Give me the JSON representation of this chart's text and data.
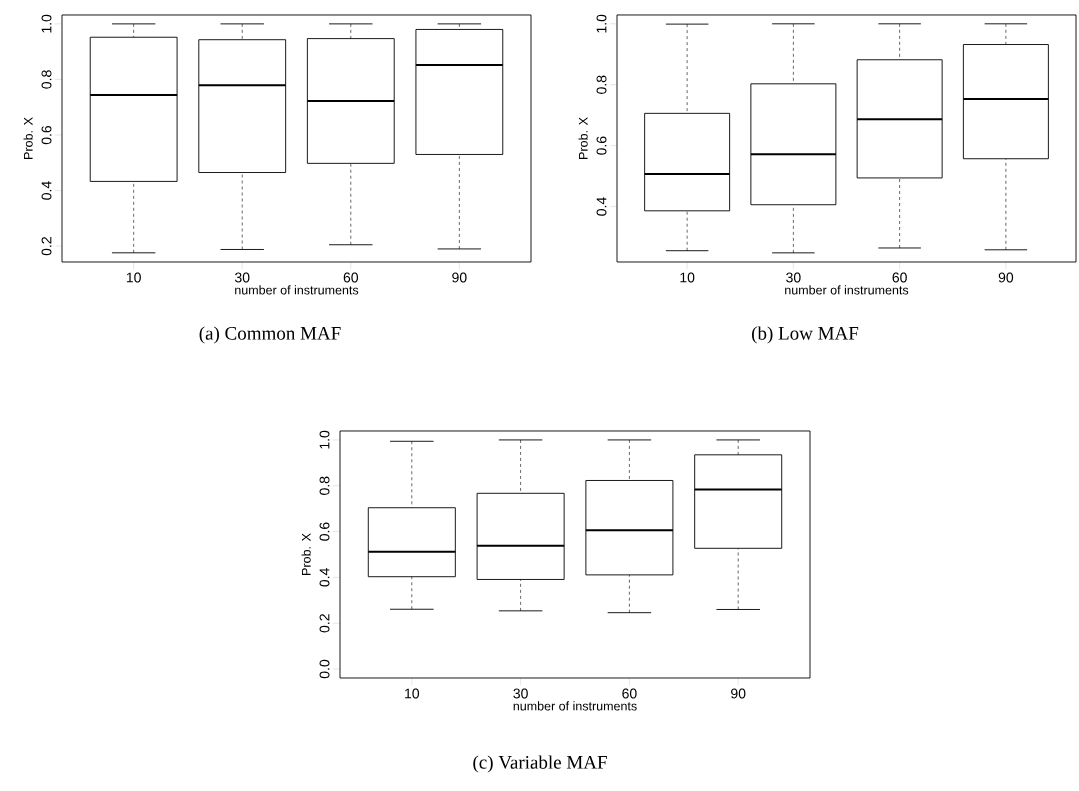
{
  "chart_data": [
    {
      "type": "box",
      "categories": [
        "10",
        "30",
        "60",
        "90"
      ],
      "xlabel": "number of instruments",
      "ylabel": "Prob. X",
      "ylim": [
        0.143,
        1.032
      ],
      "yticks": [
        {
          "value": 0.2,
          "label": "0.2"
        },
        {
          "value": 0.4,
          "label": "0.4"
        },
        {
          "value": 0.6,
          "label": "0.6"
        },
        {
          "value": 0.8,
          "label": "0.8"
        },
        {
          "value": 1,
          "label": "1.0"
        }
      ],
      "boxes": [
        {
          "low": 0.176,
          "q1": 0.433,
          "median": 0.744,
          "q3": 0.952,
          "high": 1.0
        },
        {
          "low": 0.188,
          "q1": 0.465,
          "median": 0.779,
          "q3": 0.943,
          "high": 1.0
        },
        {
          "low": 0.205,
          "q1": 0.498,
          "median": 0.722,
          "q3": 0.947,
          "high": 1.0
        },
        {
          "low": 0.19,
          "q1": 0.53,
          "median": 0.852,
          "q3": 0.98,
          "high": 1.0
        }
      ],
      "annotations": [
        "(a) Common MAF"
      ]
    },
    {
      "type": "box",
      "categories": [
        "10",
        "30",
        "60",
        "90"
      ],
      "xlabel": "number of instruments",
      "ylabel": "Prob. X",
      "ylim": [
        0.218,
        1.029
      ],
      "yticks": [
        {
          "value": 0.4,
          "label": "0.4"
        },
        {
          "value": 0.6,
          "label": "0.6"
        },
        {
          "value": 0.8,
          "label": "0.8"
        },
        {
          "value": 1,
          "label": "1.0"
        }
      ],
      "boxes": [
        {
          "low": 0.255,
          "q1": 0.386,
          "median": 0.507,
          "q3": 0.706,
          "high": 0.999
        },
        {
          "low": 0.248,
          "q1": 0.406,
          "median": 0.572,
          "q3": 0.803,
          "high": 1.0
        },
        {
          "low": 0.264,
          "q1": 0.494,
          "median": 0.687,
          "q3": 0.882,
          "high": 1.0
        },
        {
          "low": 0.258,
          "q1": 0.557,
          "median": 0.753,
          "q3": 0.932,
          "high": 1.0
        }
      ],
      "annotations": [
        "(b) Low MAF"
      ]
    },
    {
      "type": "box",
      "categories": [
        "10",
        "30",
        "60",
        "90"
      ],
      "xlabel": "number of instruments",
      "ylabel": "Prob. X",
      "ylim": [
        -0.039,
        1.039
      ],
      "yticks": [
        {
          "value": 0,
          "label": "0.0"
        },
        {
          "value": 0.2,
          "label": "0.2"
        },
        {
          "value": 0.4,
          "label": "0.4"
        },
        {
          "value": 0.6,
          "label": "0.6"
        },
        {
          "value": 0.8,
          "label": "0.8"
        },
        {
          "value": 1,
          "label": "1.0"
        }
      ],
      "boxes": [
        {
          "low": 0.261,
          "q1": 0.403,
          "median": 0.512,
          "q3": 0.704,
          "high": 0.994
        },
        {
          "low": 0.254,
          "q1": 0.391,
          "median": 0.538,
          "q3": 0.767,
          "high": 1.0
        },
        {
          "low": 0.246,
          "q1": 0.411,
          "median": 0.606,
          "q3": 0.823,
          "high": 1.0
        },
        {
          "low": 0.26,
          "q1": 0.527,
          "median": 0.784,
          "q3": 0.935,
          "high": 1.0
        }
      ],
      "annotations": [
        "(c) Variable MAF"
      ]
    }
  ]
}
